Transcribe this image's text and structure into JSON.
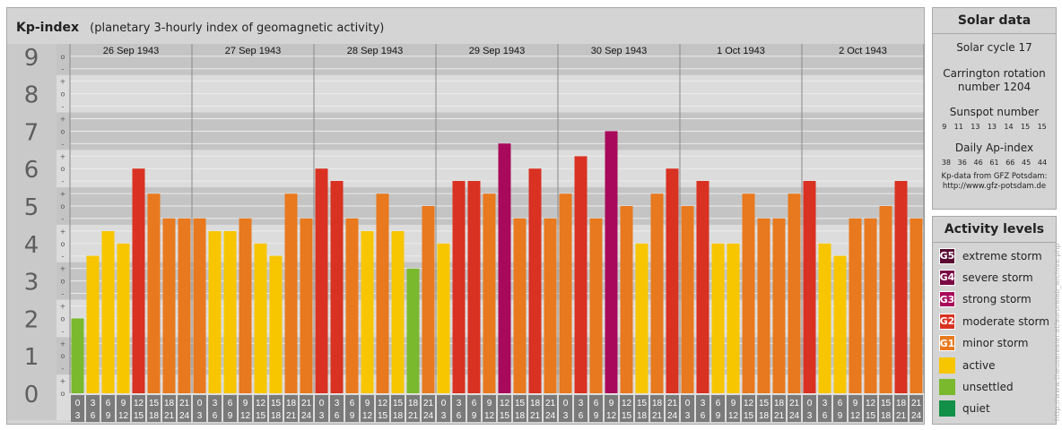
{
  "title": {
    "main": "Kp-index",
    "subtitle": "(planetary 3-hourly index of geomagnetic activity)"
  },
  "solar": {
    "heading": "Solar data",
    "cycle": "Solar cycle 17",
    "rotation_line1": "Carrington rotation",
    "rotation_line2": "number 1204",
    "sunspot_heading": "Sunspot number",
    "sunspots": [
      "9",
      "11",
      "13",
      "13",
      "14",
      "15",
      "15"
    ],
    "ap_heading": "Daily Ap-index",
    "ap": [
      "38",
      "36",
      "46",
      "61",
      "66",
      "45",
      "44"
    ],
    "source_line1": "Kp-data from GFZ Potsdam:",
    "source_line2": "http://www.gfz-potsdam.de"
  },
  "activity": {
    "heading": "Activity levels",
    "levels": [
      {
        "badge": "G5",
        "label": "extreme storm",
        "color": "#5a0a32"
      },
      {
        "badge": "G4",
        "label": "severe storm",
        "color": "#7c0a45"
      },
      {
        "badge": "G3",
        "label": "strong storm",
        "color": "#a8095a"
      },
      {
        "badge": "G2",
        "label": "moderate storm",
        "color": "#d93122"
      },
      {
        "badge": "G1",
        "label": "minor storm",
        "color": "#e8791e"
      },
      {
        "badge": "",
        "label": "active",
        "color": "#f7c600"
      },
      {
        "badge": "",
        "label": "unsettled",
        "color": "#7ab82e"
      },
      {
        "badge": "",
        "label": "quiet",
        "color": "#139047"
      }
    ]
  },
  "credit": "http://www.theusarealer.at/auroralab_archive.php",
  "chart_data": {
    "type": "bar",
    "ylim": [
      0,
      9
    ],
    "y_ticks": [
      "0",
      "1",
      "2",
      "3",
      "4",
      "5",
      "6",
      "7",
      "8",
      "9"
    ],
    "sub_ticks": [
      "o",
      "+",
      "-",
      "o"
    ],
    "days": [
      "26 Sep 1943",
      "27 Sep 1943",
      "28 Sep 1943",
      "29 Sep 1943",
      "30 Sep 1943",
      "1 Oct 1943",
      "2 Oct 1943"
    ],
    "interval_start": [
      "0",
      "3",
      "6",
      "9",
      "12",
      "15",
      "18",
      "21"
    ],
    "interval_end": [
      "3",
      "6",
      "9",
      "12",
      "15",
      "18",
      "21",
      "24"
    ],
    "series": [
      {
        "values": [
          [
            2.0,
            3.67,
            4.33,
            4.0,
            6.0,
            5.33,
            4.67,
            4.67
          ],
          [
            4.67,
            4.33,
            4.33,
            4.67,
            4.0,
            3.67,
            5.33,
            4.67
          ],
          [
            6.0,
            5.67,
            4.67,
            4.33,
            5.33,
            4.33,
            3.33,
            5.0
          ],
          [
            4.0,
            5.67,
            5.67,
            5.33,
            6.67,
            4.67,
            6.0,
            4.67
          ],
          [
            5.33,
            6.33,
            4.67,
            7.0,
            5.0,
            4.0,
            5.33,
            6.0
          ],
          [
            5.0,
            5.67,
            4.0,
            4.0,
            5.33,
            4.67,
            4.67,
            5.33
          ],
          [
            5.67,
            4.0,
            3.67,
            4.67,
            4.67,
            5.0,
            5.67,
            4.67
          ]
        ]
      }
    ],
    "colors": {
      "quiet": "#139047",
      "unsettled": "#7ab82e",
      "active": "#f7c600",
      "g1": "#e8791e",
      "g2": "#d93122",
      "g3": "#a8095a",
      "g4": "#7c0a45",
      "g5": "#5a0a32"
    }
  }
}
